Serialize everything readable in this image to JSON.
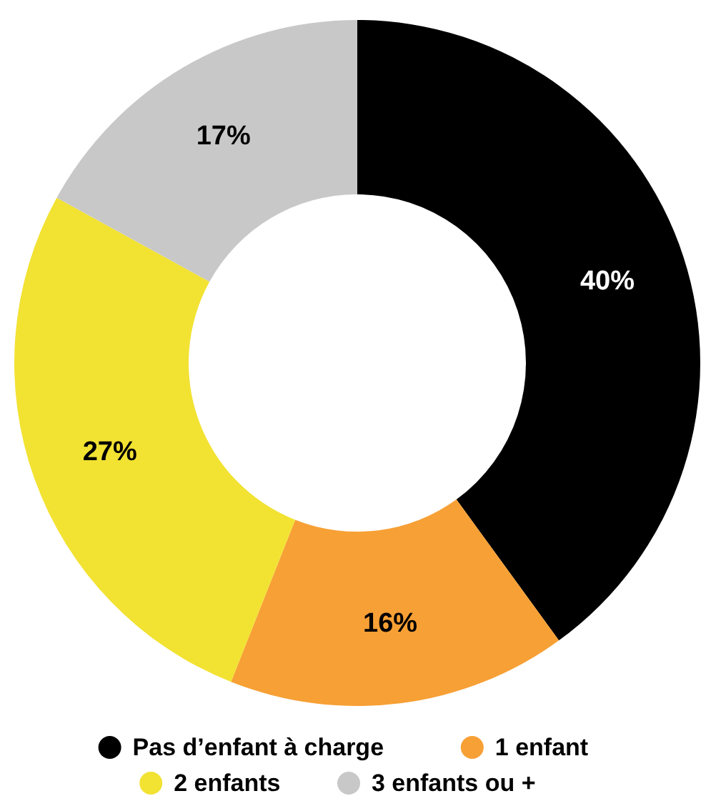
{
  "chart_data": {
    "type": "donut",
    "categories": [
      "Pas d’enfant à charge",
      "1 enfant",
      "2 enfants",
      "3 enfants ou +"
    ],
    "values": [
      40,
      16,
      27,
      17
    ],
    "colors": [
      "#000000",
      "#f7a035",
      "#f2e232",
      "#c8c8c8"
    ],
    "value_labels": [
      "40%",
      "16%",
      "27%",
      "17%"
    ],
    "legend": "bottom"
  }
}
